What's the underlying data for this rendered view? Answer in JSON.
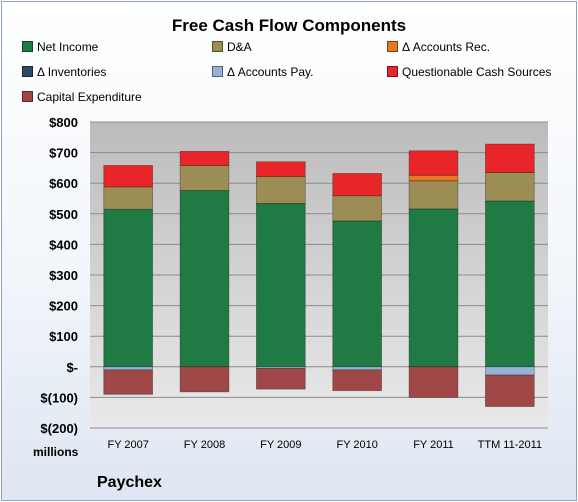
{
  "chart_data": {
    "type": "bar",
    "stacked": true,
    "title": "Free Cash Flow Components",
    "ylabel": "",
    "xlabel": "",
    "units_label": "millions",
    "company": "Paychex",
    "categories": [
      "FY 2007",
      "FY 2008",
      "FY 2009",
      "FY 2010",
      "FY 2011",
      "TTM 11-2011"
    ],
    "ylim": [
      -200,
      800
    ],
    "yticks": [
      800,
      700,
      600,
      500,
      400,
      300,
      200,
      100,
      0,
      -100,
      -200
    ],
    "ytick_labels": [
      "$800",
      "$700",
      "$600",
      "$500",
      "$400",
      "$300",
      "$200",
      "$100",
      "$-",
      "$(100)",
      "$(200)"
    ],
    "grid": true,
    "legend_position": "top",
    "series": [
      {
        "name": "Net Income",
        "color": "#1f7a44",
        "values": [
          515,
          576,
          534,
          477,
          516,
          542
        ]
      },
      {
        "name": "D&A",
        "color": "#9c8d55",
        "values": [
          73,
          82,
          88,
          82,
          92,
          93
        ]
      },
      {
        "name": "Δ Accounts Rec.",
        "color": "#e87722",
        "values": [
          0,
          0,
          0,
          0,
          18,
          0
        ]
      },
      {
        "name": "Δ Inventories",
        "color": "#2e4a63",
        "values": [
          0,
          0,
          0,
          0,
          0,
          0
        ]
      },
      {
        "name": "Δ Accounts Pay.",
        "color": "#95b3d7",
        "values": [
          -10,
          0,
          -5,
          -10,
          0,
          -27
        ]
      },
      {
        "name": "Questionable Cash Sources",
        "color": "#e8262a",
        "values": [
          70,
          46,
          48,
          73,
          80,
          93
        ]
      },
      {
        "name": "Capital Expenditure",
        "color": "#a04848",
        "values": [
          -80,
          -82,
          -68,
          -68,
          -100,
          -103
        ]
      }
    ]
  }
}
